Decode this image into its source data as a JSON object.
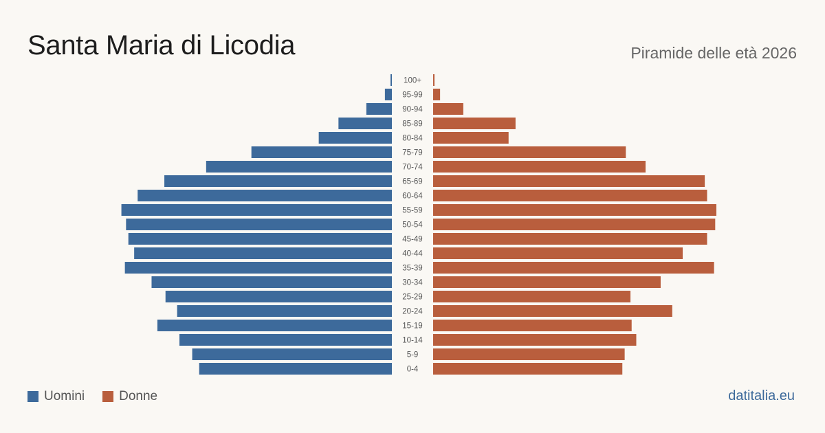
{
  "title": "Santa Maria di Licodia",
  "subtitle": "Piramide delle età 2026",
  "brand": "datitalia.eu",
  "legend": {
    "men_label": "Uomini",
    "women_label": "Donne"
  },
  "colors": {
    "men": "#3d6a9b",
    "women": "#b95e3d"
  },
  "chart_data": {
    "type": "bar",
    "orientation": "horizontal-pyramid",
    "categories": [
      "100+",
      "95-99",
      "90-94",
      "85-89",
      "80-84",
      "75-79",
      "70-74",
      "65-69",
      "60-64",
      "55-59",
      "50-54",
      "45-49",
      "40-44",
      "35-39",
      "30-34",
      "25-29",
      "20-24",
      "15-19",
      "10-14",
      "5-9",
      "0-4"
    ],
    "series": [
      {
        "name": "Uomini",
        "values": [
          1,
          6,
          22,
          46,
          63,
          121,
          160,
          196,
          219,
          233,
          229,
          227,
          222,
          230,
          207,
          195,
          185,
          202,
          183,
          172,
          166
        ]
      },
      {
        "name": "Donne",
        "values": [
          1,
          6,
          26,
          71,
          65,
          166,
          183,
          234,
          236,
          244,
          243,
          236,
          215,
          242,
          196,
          170,
          206,
          171,
          175,
          165,
          163
        ]
      }
    ],
    "legend_position": "bottom-left",
    "grid": false
  }
}
